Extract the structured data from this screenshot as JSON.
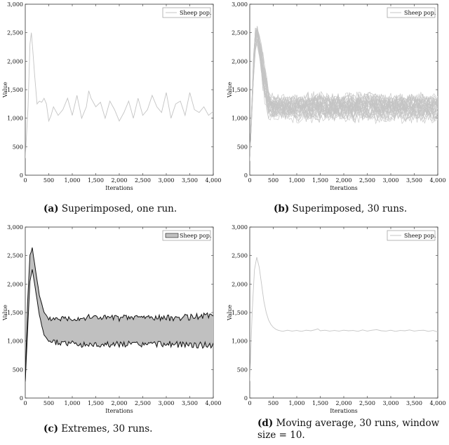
{
  "colors": {
    "line_light": "#c4c4c4",
    "band_fill": "#c0c0c0",
    "band_edge": "#111111",
    "axis": "#333333"
  },
  "panels": [
    {
      "id": "a",
      "label": "(a)",
      "caption": "Superimposed, one run."
    },
    {
      "id": "b",
      "label": "(b)",
      "caption": "Superimposed, 30 runs."
    },
    {
      "id": "c",
      "label": "(c)",
      "caption": "Extremes, 30 runs."
    },
    {
      "id": "d",
      "label": "(d)",
      "caption": "Moving average, 30 runs, window size = 10."
    }
  ],
  "chart_data": [
    {
      "id": "a",
      "type": "line",
      "xlabel": "Iterations",
      "ylabel": "Value",
      "xlim": [
        0,
        4000
      ],
      "ylim": [
        0,
        3000
      ],
      "xticks": [
        500,
        1000,
        1500,
        2000,
        2500,
        3000,
        3500,
        4000
      ],
      "yticks": [
        0,
        500,
        1000,
        1500,
        2000,
        2500,
        3000
      ],
      "legend": {
        "label": "Sheep pop.",
        "position": "top-right"
      },
      "series": [
        {
          "name": "Sheep pop.",
          "runs": 1,
          "x": [
            0,
            60,
            100,
            130,
            160,
            200,
            250,
            300,
            350,
            400,
            450,
            500,
            550,
            600,
            700,
            800,
            900,
            1000,
            1100,
            1200,
            1300,
            1350,
            1400,
            1500,
            1600,
            1700,
            1800,
            1900,
            2000,
            2100,
            2200,
            2300,
            2400,
            2500,
            2600,
            2700,
            2800,
            2900,
            3000,
            3100,
            3200,
            3300,
            3400,
            3500,
            3600,
            3700,
            3800,
            3900,
            4000
          ],
          "y": [
            300,
            1200,
            2300,
            2500,
            2200,
            1750,
            1250,
            1300,
            1280,
            1350,
            1250,
            950,
            1050,
            1200,
            1050,
            1150,
            1350,
            1050,
            1400,
            1000,
            1200,
            1480,
            1350,
            1200,
            1280,
            1000,
            1300,
            1150,
            950,
            1100,
            1300,
            1000,
            1350,
            1050,
            1150,
            1400,
            1200,
            1100,
            1450,
            1000,
            1250,
            1300,
            1050,
            1450,
            1150,
            1100,
            1200,
            1050,
            1120
          ]
        }
      ]
    },
    {
      "id": "b",
      "type": "line",
      "xlabel": "Iterations",
      "ylabel": "Value",
      "xlim": [
        0,
        4000
      ],
      "ylim": [
        0,
        3000
      ],
      "xticks": [
        500,
        1000,
        1500,
        2000,
        2500,
        3000,
        3500,
        4000
      ],
      "yticks": [
        0,
        500,
        1000,
        1500,
        2000,
        2500,
        3000
      ],
      "legend": {
        "label": "Sheep pop.",
        "position": "top-right"
      },
      "series": [
        {
          "name": "Sheep pop.",
          "runs": 30,
          "x": [
            0,
            100,
            150,
            200,
            300,
            400,
            500,
            1000,
            1500,
            2000,
            2500,
            3000,
            3500,
            4000
          ],
          "y_min": [
            250,
            1900,
            2200,
            2000,
            1250,
            950,
            900,
            880,
            850,
            880,
            850,
            880,
            850,
            880
          ],
          "y_mean": [
            300,
            2300,
            2500,
            2300,
            1700,
            1250,
            1180,
            1180,
            1190,
            1180,
            1190,
            1180,
            1180,
            1180
          ],
          "y_max": [
            400,
            2550,
            2650,
            2500,
            2150,
            1550,
            1450,
            1480,
            1500,
            1480,
            1500,
            1480,
            1500,
            1480
          ]
        }
      ]
    },
    {
      "id": "c",
      "type": "area",
      "xlabel": "Iterations",
      "ylabel": "Value",
      "xlim": [
        0,
        4000
      ],
      "ylim": [
        0,
        3000
      ],
      "xticks": [
        500,
        1000,
        1500,
        2000,
        2500,
        3000,
        3500,
        4000
      ],
      "yticks": [
        0,
        500,
        1000,
        1500,
        2000,
        2500,
        3000
      ],
      "legend": {
        "label": "Sheep pop.",
        "position": "top-right"
      },
      "series": [
        {
          "name": "Sheep pop.",
          "x": [
            0,
            50,
            100,
            150,
            200,
            300,
            400,
            500,
            600,
            1000,
            1500,
            2000,
            2500,
            3000,
            3500,
            4000
          ],
          "y_max": [
            300,
            1700,
            2500,
            2640,
            2350,
            1800,
            1500,
            1380,
            1400,
            1400,
            1420,
            1400,
            1420,
            1400,
            1420,
            1450
          ],
          "y_min": [
            280,
            1200,
            2050,
            2250,
            2000,
            1450,
            1100,
            1000,
            980,
            950,
            930,
            950,
            940,
            950,
            930,
            930
          ]
        }
      ]
    },
    {
      "id": "d",
      "type": "line",
      "xlabel": "Iterations",
      "ylabel": "Value",
      "xlim": [
        0,
        4000
      ],
      "ylim": [
        0,
        3000
      ],
      "xticks": [
        500,
        1000,
        1500,
        2000,
        2500,
        3000,
        3500,
        4000
      ],
      "yticks": [
        0,
        500,
        1000,
        1500,
        2000,
        2500,
        3000
      ],
      "legend": {
        "label": "Sheep pop.",
        "position": "top-right"
      },
      "series": [
        {
          "name": "Sheep pop.",
          "x": [
            0,
            50,
            100,
            150,
            200,
            250,
            300,
            350,
            400,
            450,
            500,
            550,
            600,
            700,
            800,
            900,
            1000,
            1100,
            1200,
            1300,
            1400,
            1450,
            1500,
            1600,
            1700,
            1800,
            1900,
            2000,
            2100,
            2200,
            2300,
            2400,
            2500,
            2600,
            2700,
            2800,
            2900,
            3000,
            3100,
            3200,
            3300,
            3400,
            3500,
            3600,
            3700,
            3800,
            3900,
            4000
          ],
          "y": [
            300,
            1500,
            2250,
            2470,
            2300,
            2000,
            1700,
            1500,
            1370,
            1290,
            1240,
            1210,
            1190,
            1170,
            1190,
            1175,
            1185,
            1170,
            1190,
            1180,
            1200,
            1215,
            1180,
            1190,
            1175,
            1185,
            1175,
            1190,
            1180,
            1185,
            1170,
            1195,
            1175,
            1190,
            1200,
            1180,
            1175,
            1190,
            1170,
            1185,
            1180,
            1195,
            1175,
            1185,
            1190,
            1170,
            1185,
            1160
          ]
        }
      ]
    }
  ]
}
